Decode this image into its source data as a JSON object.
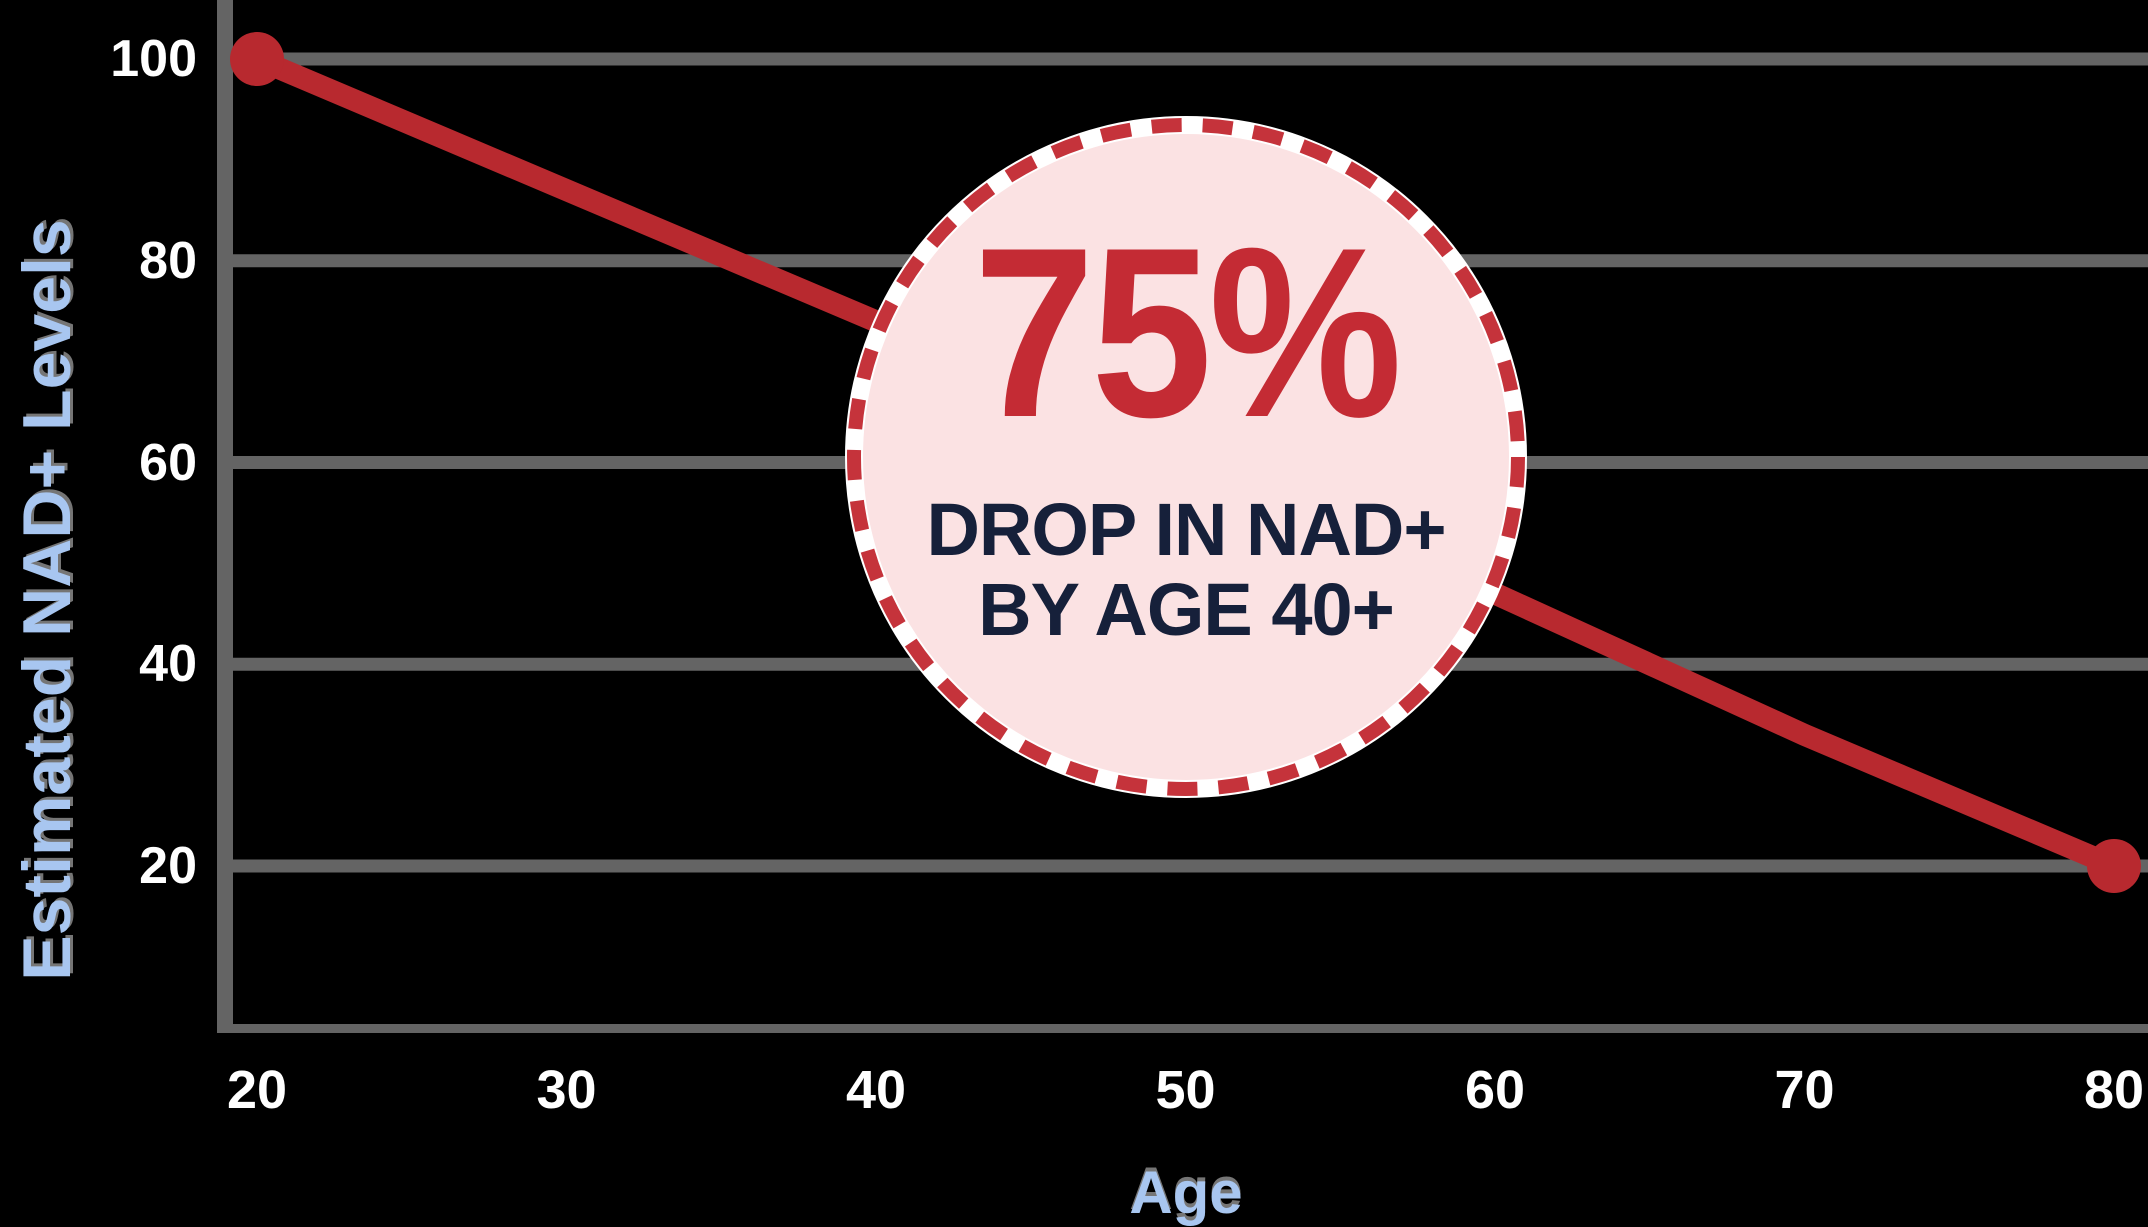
{
  "chart_data": {
    "type": "line",
    "title": "",
    "xlabel": "Age",
    "ylabel": "Estimated NAD+ Levels",
    "x": [
      20,
      30,
      40,
      50,
      60,
      70,
      80
    ],
    "series": [
      {
        "name": "Estimated NAD+ Levels",
        "values": [
          100,
          87,
          74,
          60,
          47,
          33,
          20
        ]
      }
    ],
    "x_tick_labels": [
      "20",
      "30",
      "40",
      "50",
      "60",
      "70",
      "80"
    ],
    "y_tick_labels": [
      "100",
      "80",
      "60",
      "40",
      "20"
    ],
    "y_tick_values": [
      100,
      80,
      60,
      40,
      20
    ],
    "xlim": [
      20,
      81
    ],
    "ylim": [
      4,
      100
    ],
    "grid": "horizontal gridlines at each y tick",
    "legend": "none",
    "markers": "filled circles on first and last points only",
    "annotation": {
      "headline": "75%",
      "line1": "DROP IN NAD+",
      "line2": "BY AGE 40+"
    }
  },
  "colors": {
    "background": "#000000",
    "axis_gray": "#646464",
    "grid_gray": "#646464",
    "line_red": "#B8292F",
    "accent_red": "#C42B34",
    "dash_red": "#C5333B",
    "circle_pink": "#FBE2E3",
    "circle_ring_white": "#FFFFFF",
    "navy_text": "#16203A",
    "tick_white": "#FFFFFF",
    "axis_label_blue": "#A8C6F0"
  }
}
